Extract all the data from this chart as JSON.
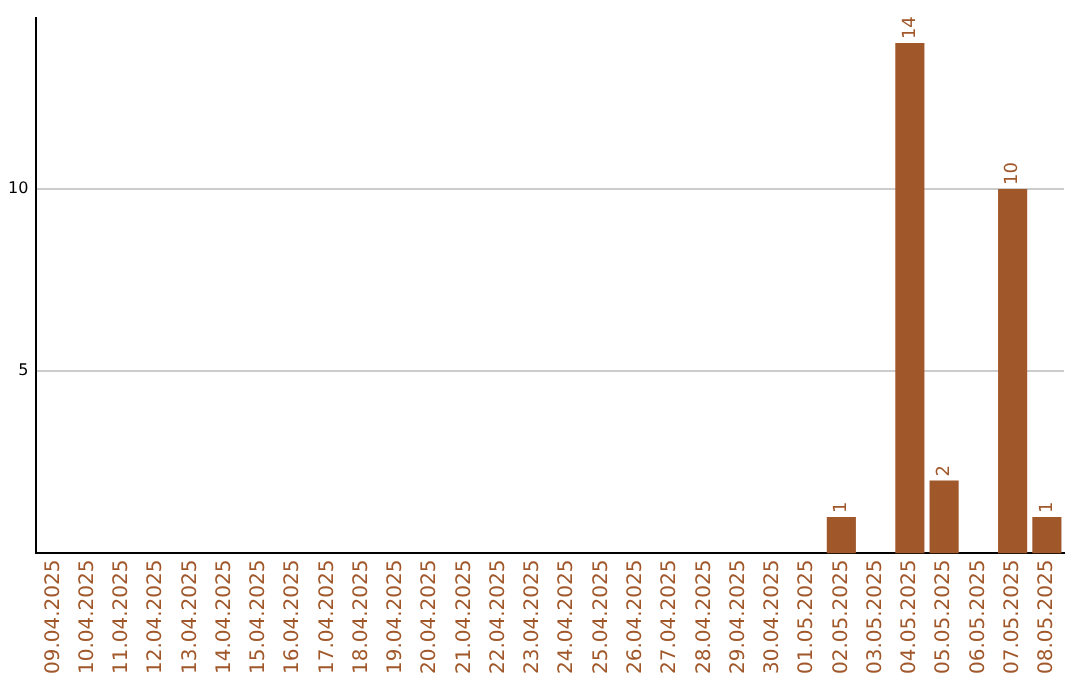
{
  "chart_data": {
    "type": "bar",
    "categories": [
      "09.04.2025",
      "10.04.2025",
      "11.04.2025",
      "12.04.2025",
      "13.04.2025",
      "14.04.2025",
      "15.04.2025",
      "16.04.2025",
      "17.04.2025",
      "18.04.2025",
      "19.04.2025",
      "20.04.2025",
      "21.04.2025",
      "22.04.2025",
      "23.04.2025",
      "24.04.2025",
      "25.04.2025",
      "26.04.2025",
      "27.04.2025",
      "28.04.2025",
      "29.04.2025",
      "30.04.2025",
      "01.05.2025",
      "02.05.2025",
      "03.05.2025",
      "04.05.2025",
      "05.05.2025",
      "06.05.2025",
      "07.05.2025",
      "08.05.2025"
    ],
    "values": [
      null,
      null,
      null,
      null,
      null,
      null,
      null,
      null,
      null,
      null,
      null,
      null,
      null,
      null,
      null,
      null,
      null,
      null,
      null,
      null,
      null,
      null,
      null,
      1,
      null,
      14,
      2,
      null,
      10,
      1
    ],
    "color": "#a0572a",
    "ylim": [
      0,
      14.7
    ],
    "yticks": [
      5,
      10
    ],
    "grid": "y",
    "data_labels": true,
    "legend": false
  }
}
